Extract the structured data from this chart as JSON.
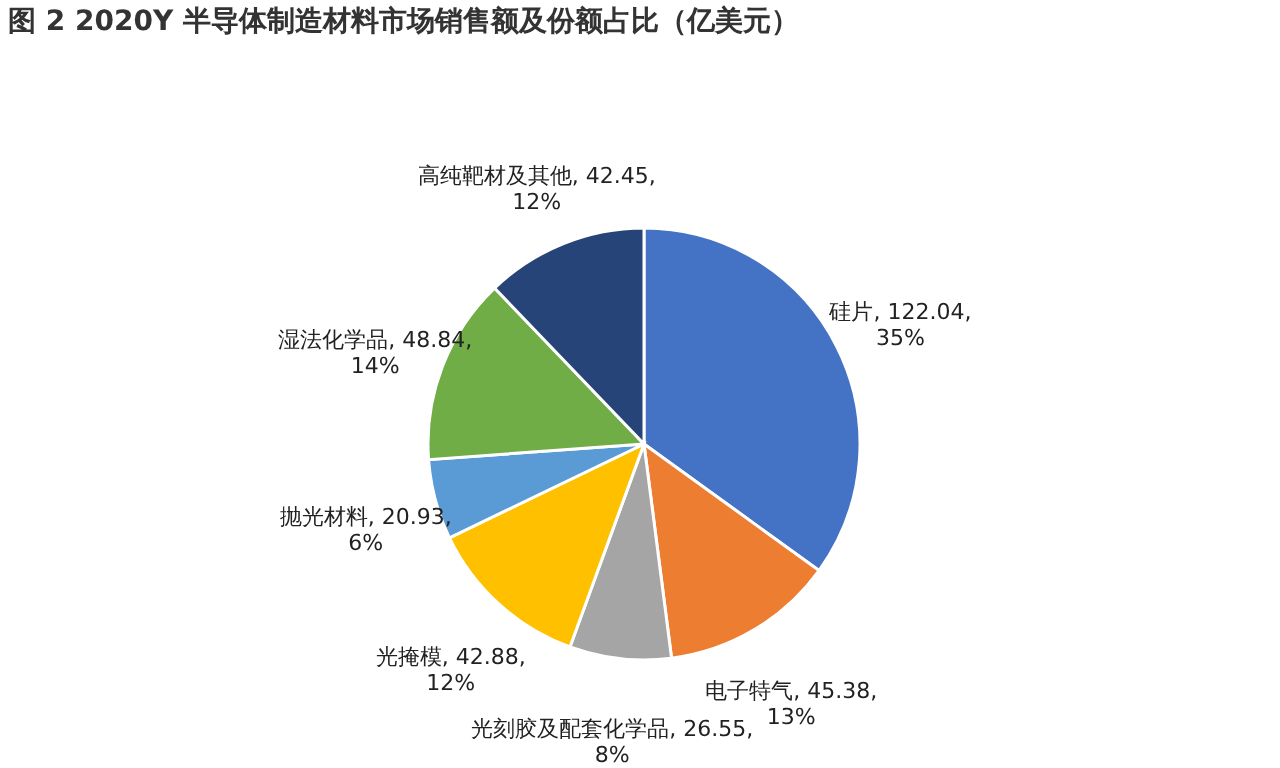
{
  "chart_data": {
    "type": "pie",
    "title": "图 2 2020Y 半导体制造材料市场销售额及份额占比（亿美元）",
    "categories": [
      "硅片",
      "电子特气",
      "光刻胶及配套化学品",
      "光掩模",
      "抛光材料",
      "湿法化学品",
      "高纯靶材及其他"
    ],
    "values": [
      122.04,
      45.38,
      26.55,
      42.88,
      20.93,
      48.84,
      42.45
    ],
    "value_labels": [
      "122.04, 35%",
      "45.38, 13%",
      "26.55, 8%",
      "42.88, 12%",
      "20.93, 6%",
      "48.84, 14%",
      "42.45, 12%"
    ],
    "colors": [
      "#4472c4",
      "#ed7d31",
      "#a5a5a5",
      "#ffc000",
      "#5b9bd5",
      "#70ad47",
      "#264478"
    ],
    "legend": false
  }
}
